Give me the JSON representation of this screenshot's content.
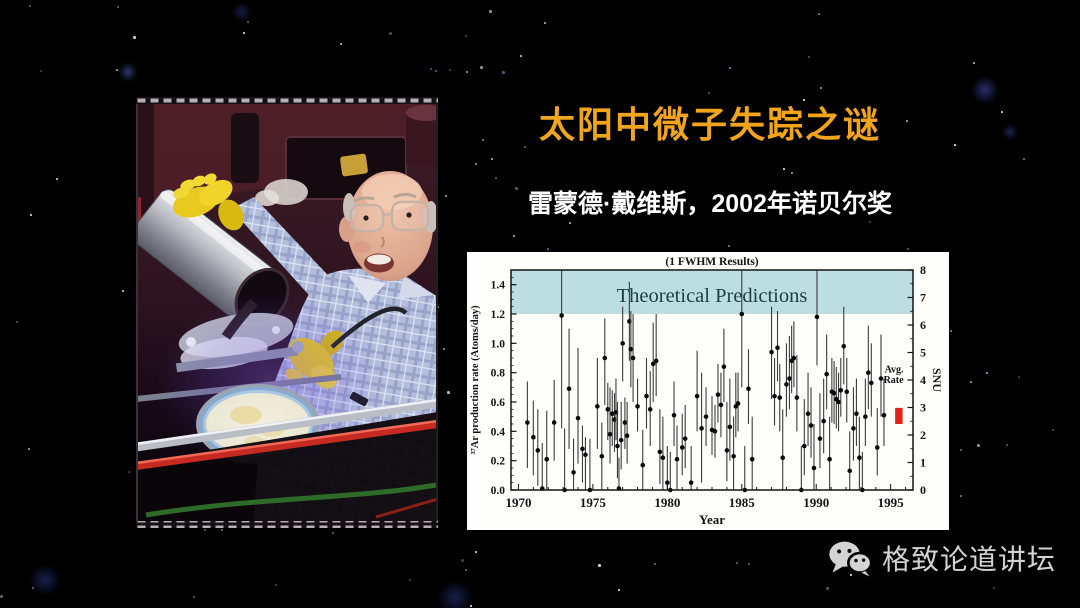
{
  "slide": {
    "title": "太阳中微子失踪之谜",
    "subtitle": "雷蒙德·戴维斯，2002年诺贝尔奖"
  },
  "colors": {
    "background": "#000000",
    "title_gold": "#F1A51C",
    "subtitle_white": "#FFFFFF",
    "chart_bg": "#FDFDFA",
    "band_teal": "#BCDEE3",
    "band_text": "#1C4044",
    "axis_black": "#141414",
    "errorbar_gray": "#3C3C3C",
    "avg_rate_red": "#E32119",
    "watermark_gray": "#D2D2D2"
  },
  "photo": {
    "description": "Smiling elderly scientist (Raymond Davis) in glasses and plaid shirt, wearing yellow rubber gloves, leaning over a silver cylindrical detector tank and a glowing glass dish in a lab"
  },
  "watermark": {
    "icon": "wechat-icon",
    "label": "格致论道讲坛"
  },
  "chart_data": {
    "type": "scatter",
    "title": "(1 FWHM Results)",
    "xlabel": "Year",
    "ylabel_left": "³⁷Ar production rate (Atoms/day)",
    "ylabel_right": "SNU",
    "xlim": [
      1969.5,
      1996.5
    ],
    "ylim_left": [
      0,
      1.5
    ],
    "ylim_right": [
      0,
      8
    ],
    "xticks": [
      1970,
      1975,
      1980,
      1985,
      1990,
      1995
    ],
    "yticks_left": [
      "0.0",
      "0.2",
      "0.4",
      "0.6",
      "0.8",
      "1.0",
      "1.2",
      "1.4"
    ],
    "yticks_right": [
      0,
      1,
      2,
      3,
      4,
      5,
      6,
      7,
      8
    ],
    "grid": false,
    "legend": "none",
    "band": {
      "label": "Theoretical Predictions",
      "y_from": 1.2,
      "y_to": 1.5
    },
    "avg_rate": {
      "label": [
        "Avg.",
        "Rate"
      ],
      "x_from": 1995.3,
      "x_to": 1995.8,
      "y_from": 0.45,
      "y_to": 0.56
    },
    "points_format": [
      "year",
      "rate",
      "err_low",
      "err_high"
    ],
    "points": [
      [
        1970.6,
        0.46,
        0.15,
        0.74
      ],
      [
        1971.0,
        0.36,
        0.1,
        0.61
      ],
      [
        1971.3,
        0.27,
        0.03,
        0.55
      ],
      [
        1971.6,
        0.01,
        0.0,
        0.32
      ],
      [
        1971.9,
        0.21,
        0.0,
        0.54
      ],
      [
        1972.4,
        0.46,
        0.2,
        0.75
      ],
      [
        1972.9,
        1.19,
        0.42,
        1.5
      ],
      [
        1973.1,
        0.0,
        0.0,
        0.42
      ],
      [
        1973.4,
        0.69,
        0.28,
        1.1
      ],
      [
        1973.7,
        0.12,
        0.0,
        0.35
      ],
      [
        1974.0,
        0.49,
        0.18,
        0.97
      ],
      [
        1974.3,
        0.28,
        0.05,
        0.44
      ],
      [
        1974.5,
        0.24,
        0.0,
        0.36
      ],
      [
        1974.8,
        0.0,
        0.0,
        0.35
      ],
      [
        1975.3,
        0.57,
        0.28,
        0.9
      ],
      [
        1975.6,
        0.23,
        0.0,
        0.46
      ],
      [
        1975.8,
        0.9,
        0.58,
        1.17
      ],
      [
        1976.0,
        0.55,
        0.34,
        0.73
      ],
      [
        1976.15,
        0.38,
        0.18,
        0.7
      ],
      [
        1976.3,
        0.52,
        0.3,
        0.68
      ],
      [
        1976.45,
        0.48,
        0.26,
        0.66
      ],
      [
        1976.55,
        0.53,
        0.34,
        0.76
      ],
      [
        1976.65,
        0.3,
        0.08,
        0.6
      ],
      [
        1976.75,
        0.01,
        0.0,
        0.22
      ],
      [
        1976.9,
        0.34,
        0.14,
        0.6
      ],
      [
        1977.0,
        1.0,
        0.74,
        1.25
      ],
      [
        1977.15,
        0.46,
        0.28,
        0.63
      ],
      [
        1977.3,
        0.37,
        0.18,
        0.6
      ],
      [
        1977.45,
        1.15,
        0.88,
        1.42
      ],
      [
        1977.55,
        0.96,
        0.7,
        1.22
      ],
      [
        1977.7,
        0.9,
        0.6,
        1.2
      ],
      [
        1978.0,
        0.57,
        0.4,
        0.76
      ],
      [
        1978.35,
        0.17,
        0.0,
        0.41
      ],
      [
        1978.6,
        0.64,
        0.42,
        0.9
      ],
      [
        1978.85,
        0.55,
        0.3,
        0.81
      ],
      [
        1979.05,
        0.86,
        0.6,
        1.14
      ],
      [
        1979.25,
        0.88,
        0.64,
        1.2
      ],
      [
        1979.5,
        0.26,
        0.04,
        0.55
      ],
      [
        1979.7,
        0.22,
        0.0,
        0.5
      ],
      [
        1980.0,
        0.05,
        0.0,
        0.3
      ],
      [
        1980.2,
        0.0,
        0.0,
        0.26
      ],
      [
        1980.45,
        0.51,
        0.3,
        0.74
      ],
      [
        1980.65,
        0.21,
        0.0,
        0.44
      ],
      [
        1981.0,
        0.29,
        0.1,
        0.52
      ],
      [
        1981.2,
        0.35,
        0.15,
        0.58
      ],
      [
        1981.6,
        0.05,
        0.0,
        0.3
      ],
      [
        1982.0,
        0.64,
        0.4,
        0.95
      ],
      [
        1982.3,
        0.42,
        0.05,
        0.8
      ],
      [
        1982.6,
        0.5,
        0.3,
        0.7
      ],
      [
        1983.0,
        0.41,
        0.24,
        0.64
      ],
      [
        1983.2,
        0.4,
        0.22,
        0.58
      ],
      [
        1983.4,
        0.65,
        0.46,
        0.86
      ],
      [
        1983.6,
        0.58,
        0.36,
        0.8
      ],
      [
        1983.8,
        0.84,
        0.6,
        1.1
      ],
      [
        1984.0,
        0.27,
        0.06,
        0.6
      ],
      [
        1984.2,
        0.43,
        0.2,
        0.76
      ],
      [
        1984.45,
        0.23,
        0.0,
        0.5
      ],
      [
        1984.6,
        0.57,
        0.36,
        0.8
      ],
      [
        1984.75,
        0.59,
        0.4,
        0.8
      ],
      [
        1985.0,
        1.2,
        0.7,
        1.5
      ],
      [
        1985.2,
        0.0,
        0.0,
        0.3
      ],
      [
        1985.45,
        0.69,
        0.45,
        0.96
      ],
      [
        1985.7,
        0.21,
        0.0,
        0.5
      ],
      [
        1987.0,
        0.94,
        0.62,
        1.25
      ],
      [
        1987.2,
        0.64,
        0.44,
        0.9
      ],
      [
        1987.4,
        0.97,
        0.74,
        1.22
      ],
      [
        1987.55,
        0.63,
        0.4,
        0.86
      ],
      [
        1987.75,
        0.22,
        0.0,
        0.55
      ],
      [
        1988.0,
        0.72,
        0.5,
        1.0
      ],
      [
        1988.2,
        0.76,
        0.55,
        1.05
      ],
      [
        1988.35,
        0.88,
        0.66,
        1.12
      ],
      [
        1988.5,
        0.9,
        0.7,
        1.15
      ],
      [
        1988.7,
        0.63,
        0.4,
        0.92
      ],
      [
        1989.0,
        0.0,
        0.0,
        0.3
      ],
      [
        1989.2,
        0.3,
        0.1,
        0.62
      ],
      [
        1989.45,
        0.52,
        0.3,
        0.8
      ],
      [
        1989.65,
        0.44,
        0.22,
        0.7
      ],
      [
        1989.85,
        0.15,
        0.0,
        0.45
      ],
      [
        1990.05,
        1.18,
        0.85,
        1.5
      ],
      [
        1990.25,
        0.35,
        0.15,
        0.66
      ],
      [
        1990.5,
        0.47,
        0.25,
        0.76
      ],
      [
        1990.7,
        0.79,
        0.55,
        1.06
      ],
      [
        1990.9,
        0.21,
        0.0,
        0.5
      ],
      [
        1991.05,
        0.67,
        0.46,
        0.9
      ],
      [
        1991.2,
        0.66,
        0.45,
        0.88
      ],
      [
        1991.35,
        0.62,
        0.42,
        0.84
      ],
      [
        1991.5,
        0.6,
        0.4,
        0.8
      ],
      [
        1991.65,
        0.68,
        0.5,
        0.9
      ],
      [
        1991.85,
        0.98,
        0.72,
        1.25
      ],
      [
        1992.05,
        0.67,
        0.46,
        0.9
      ],
      [
        1992.25,
        0.13,
        0.0,
        0.4
      ],
      [
        1992.5,
        0.42,
        0.2,
        0.7
      ],
      [
        1992.7,
        0.52,
        0.3,
        0.76
      ],
      [
        1992.9,
        0.22,
        0.0,
        0.5
      ],
      [
        1993.1,
        0.0,
        0.0,
        0.26
      ],
      [
        1993.3,
        0.5,
        0.3,
        0.76
      ],
      [
        1993.5,
        0.8,
        0.55,
        1.12
      ],
      [
        1993.7,
        0.73,
        0.5,
        1.0
      ],
      [
        1994.1,
        0.29,
        0.1,
        0.56
      ],
      [
        1994.35,
        0.76,
        0.5,
        1.06
      ],
      [
        1994.55,
        0.51,
        0.3,
        0.76
      ]
    ]
  }
}
